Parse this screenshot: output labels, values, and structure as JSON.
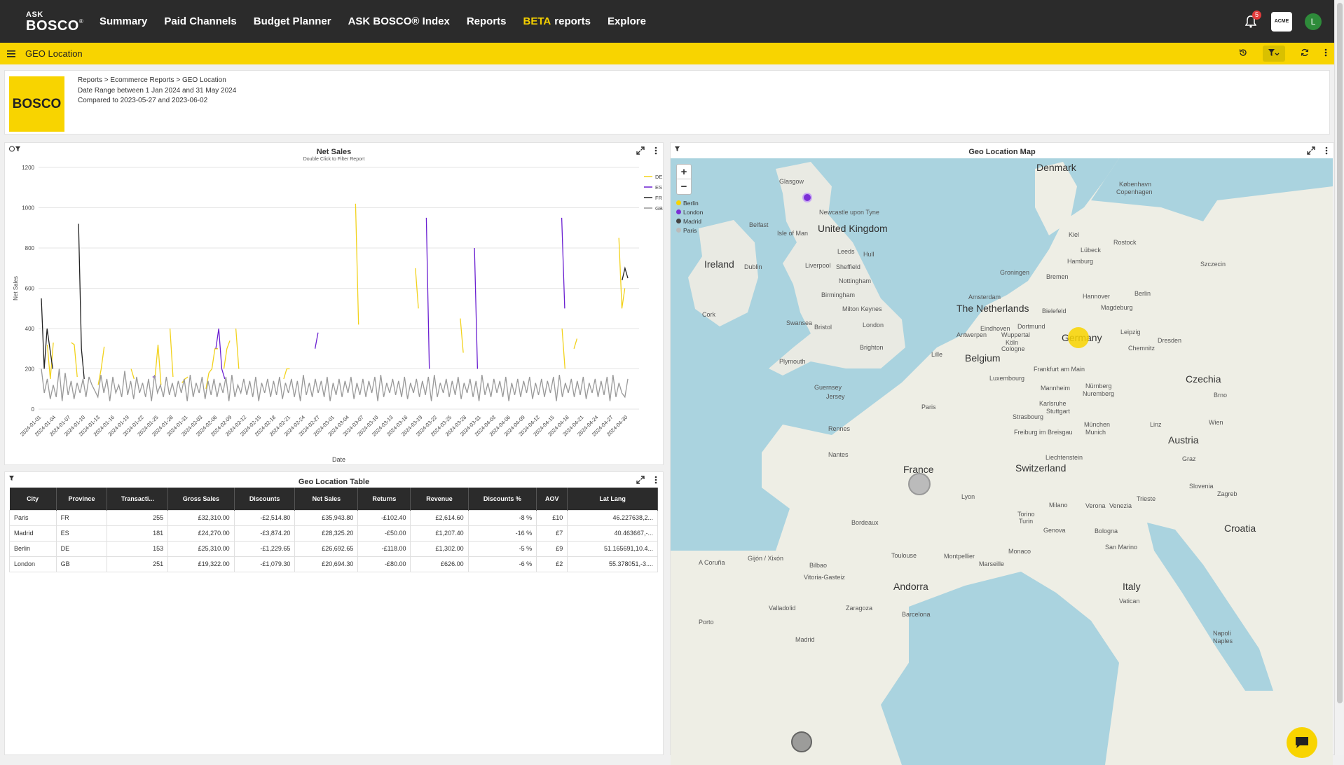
{
  "nav": {
    "logo_ask": "ASK",
    "logo_bosco": "BOSCO",
    "logo_mark": "®",
    "items": [
      {
        "label": "Summary"
      },
      {
        "label": "Paid Channels"
      },
      {
        "label": "Budget Planner"
      },
      {
        "label": "ASK BOSCO® Index"
      },
      {
        "label": "Reports"
      },
      {
        "beta": "BETA",
        "label": "reports"
      },
      {
        "label": "Explore"
      }
    ],
    "notifications": "5",
    "org_badge": "ACME",
    "avatar_initial": "L"
  },
  "toolbar": {
    "title": "GEO Location"
  },
  "header": {
    "logo_text": "BOSCO",
    "breadcrumb": "Reports > Ecommerce Reports > GEO Location",
    "date_range": "Date Range between 1 Jan 2024 and 31 May 2024",
    "compared": "Compared to 2023-05-27 and 2023-06-02"
  },
  "net_sales": {
    "title": "Net Sales",
    "subtitle": "Double Click to Filter Report"
  },
  "chart_data": {
    "type": "line",
    "title": "Net Sales",
    "xlabel": "Date",
    "ylabel": "Net Sales",
    "ylim": [
      0,
      1200
    ],
    "yticks": [
      0,
      200,
      400,
      600,
      800,
      1000,
      1200
    ],
    "xticks": [
      "2024-01-01",
      "2024-01-04",
      "2024-01-07",
      "2024-01-10",
      "2024-01-13",
      "2024-01-16",
      "2024-01-19",
      "2024-01-22",
      "2024-01-25",
      "2024-01-28",
      "2024-01-31",
      "2024-02-03",
      "2024-02-06",
      "2024-02-09",
      "2024-02-12",
      "2024-02-15",
      "2024-02-18",
      "2024-02-21",
      "2024-02-24",
      "2024-02-27",
      "2024-03-01",
      "2024-03-04",
      "2024-03-07",
      "2024-03-10",
      "2024-03-13",
      "2024-03-16",
      "2024-03-19",
      "2024-03-22",
      "2024-03-25",
      "2024-03-28",
      "2024-03-31",
      "2024-04-03",
      "2024-04-06",
      "2024-04-09",
      "2024-04-12",
      "2024-04-15",
      "2024-04-18",
      "2024-04-21",
      "2024-04-24",
      "2024-04-27",
      "2024-04-30"
    ],
    "series": [
      {
        "name": "DE",
        "color": "#f2d21b",
        "values": [
          null,
          null,
          320,
          150,
          330,
          null,
          null,
          null,
          150,
          null,
          330,
          320,
          160,
          null,
          null,
          null,
          160,
          null,
          null,
          120,
          200,
          310,
          null,
          null,
          null,
          null,
          null,
          null,
          null,
          null,
          200,
          150,
          null,
          null,
          null,
          null,
          null,
          null,
          160,
          320,
          120,
          null,
          null,
          400,
          160,
          null,
          null,
          130,
          150,
          160,
          null,
          300,
          null,
          null,
          null,
          100,
          180,
          200,
          300,
          300,
          null,
          200,
          300,
          340,
          null,
          400,
          200,
          null,
          null,
          null,
          null,
          120,
          null,
          null,
          200,
          null,
          null,
          380,
          null,
          null,
          null,
          150,
          200,
          200,
          null,
          null,
          null,
          null,
          null,
          null,
          340,
          null,
          null,
          null,
          null,
          500,
          null,
          null,
          null,
          null,
          null,
          null,
          null,
          null,
          null,
          1020,
          420,
          null,
          null,
          null,
          null,
          null,
          null,
          null,
          null,
          null,
          null,
          null,
          null,
          null,
          null,
          null,
          null,
          null,
          null,
          700,
          500,
          null,
          null,
          null,
          null,
          null,
          null,
          null,
          null,
          null,
          null,
          null,
          null,
          null,
          450,
          280,
          null,
          null,
          null,
          null,
          null,
          null,
          null,
          null,
          null,
          null,
          null,
          null,
          null,
          null,
          null,
          280,
          null,
          null,
          null,
          null,
          null,
          null,
          null,
          null,
          null,
          null,
          300,
          null,
          null,
          null,
          null,
          null,
          400,
          200,
          null,
          null,
          300,
          350,
          null,
          null,
          null,
          null,
          null,
          null,
          300,
          null,
          null,
          null,
          null,
          null,
          null,
          850,
          500,
          600,
          null
        ]
      },
      {
        "name": "ES",
        "color": "#6a1fd1",
        "values": [
          null,
          null,
          null,
          null,
          null,
          null,
          null,
          null,
          null,
          null,
          null,
          320,
          null,
          null,
          null,
          null,
          null,
          null,
          null,
          null,
          320,
          null,
          150,
          null,
          null,
          null,
          null,
          420,
          null,
          null,
          null,
          150,
          null,
          300,
          null,
          380,
          null,
          160,
          160,
          null,
          null,
          null,
          null,
          null,
          null,
          null,
          null,
          null,
          null,
          null,
          null,
          null,
          null,
          null,
          null,
          null,
          null,
          null,
          300,
          400,
          200,
          150,
          null,
          null,
          null,
          null,
          null,
          null,
          null,
          null,
          null,
          null,
          null,
          200,
          null,
          null,
          null,
          null,
          null,
          null,
          null,
          null,
          320,
          null,
          null,
          null,
          null,
          null,
          null,
          null,
          null,
          300,
          380,
          null,
          null,
          null,
          null,
          null,
          null,
          null,
          null,
          null,
          null,
          null,
          null,
          null,
          null,
          null,
          300,
          null,
          null,
          null,
          null,
          null,
          null,
          null,
          null,
          null,
          null,
          null,
          null,
          null,
          null,
          null,
          null,
          null,
          null,
          null,
          950,
          200,
          null,
          null,
          null,
          null,
          null,
          null,
          null,
          null,
          null,
          null,
          null,
          null,
          null,
          null,
          800,
          200,
          null,
          null,
          null,
          null,
          null,
          null,
          null,
          null,
          null,
          null,
          null,
          null,
          null,
          null,
          null,
          null,
          null,
          null,
          null,
          null,
          null,
          null,
          null,
          null,
          null,
          null,
          null,
          950,
          500,
          null,
          null,
          null,
          null,
          null,
          null,
          null,
          null,
          null,
          null,
          null,
          null,
          null,
          null,
          null,
          null,
          null,
          null,
          null,
          null,
          null
        ]
      },
      {
        "name": "FR",
        "color": "#222222",
        "values": [
          550,
          200,
          400,
          300,
          200,
          null,
          null,
          320,
          null,
          null,
          400,
          null,
          null,
          920,
          300,
          150,
          null,
          null,
          null,
          null,
          300,
          null,
          null,
          200,
          null,
          null,
          null,
          null,
          null,
          null,
          null,
          null,
          null,
          null,
          null,
          null,
          null,
          null,
          null,
          null,
          null,
          null,
          null,
          null,
          null,
          null,
          null,
          null,
          null,
          null,
          null,
          null,
          null,
          null,
          null,
          null,
          null,
          null,
          null,
          null,
          null,
          null,
          null,
          null,
          null,
          null,
          null,
          null,
          null,
          null,
          null,
          null,
          null,
          null,
          null,
          null,
          null,
          null,
          null,
          null,
          null,
          null,
          null,
          null,
          null,
          null,
          null,
          null,
          null,
          null,
          null,
          null,
          null,
          null,
          null,
          null,
          null,
          null,
          null,
          null,
          null,
          null,
          null,
          null,
          null,
          null,
          null,
          null,
          null,
          null,
          null,
          null,
          null,
          null,
          null,
          null,
          null,
          null,
          null,
          null,
          null,
          null,
          null,
          null,
          null,
          null,
          null,
          null,
          null,
          null,
          null,
          null,
          null,
          null,
          null,
          null,
          null,
          null,
          null,
          null,
          null,
          null,
          null,
          null,
          null,
          null,
          null,
          null,
          null,
          null,
          null,
          null,
          null,
          null,
          null,
          null,
          null,
          null,
          null,
          null,
          null,
          null,
          null,
          null,
          null,
          null,
          null,
          null,
          null,
          null,
          null,
          null,
          null,
          null,
          null,
          null,
          null,
          null,
          null,
          null,
          null,
          null,
          null,
          null,
          null,
          null,
          null,
          null,
          null,
          null,
          null,
          null,
          null,
          null,
          null,
          null,
          null,
          null,
          null,
          null,
          null,
          null,
          null,
          640,
          700,
          650
        ]
      },
      {
        "name": "GB",
        "color": "#999999",
        "values": [
          200,
          80,
          150,
          50,
          120,
          60,
          200,
          40,
          180,
          70,
          140,
          50,
          130,
          80,
          150,
          60,
          160,
          120,
          90,
          60,
          170,
          80,
          150,
          40,
          160,
          80,
          120,
          60,
          190,
          70,
          140,
          50,
          160,
          80,
          130,
          60,
          150,
          40,
          170,
          80,
          120,
          60,
          160,
          70,
          130,
          60,
          140,
          80,
          150,
          40,
          170,
          60,
          130,
          80,
          160,
          50,
          140,
          70,
          150,
          60,
          130,
          80,
          160,
          40,
          170,
          60,
          120,
          80,
          150,
          70,
          140,
          60,
          160,
          40,
          130,
          80,
          150,
          60,
          140,
          70,
          160,
          50,
          130,
          80,
          150,
          60,
          140,
          40,
          170,
          70,
          130,
          60,
          150,
          80,
          140,
          60,
          160,
          40,
          130,
          70,
          150,
          60,
          140,
          80,
          160,
          50,
          130,
          70,
          150,
          60,
          140,
          80,
          160,
          40,
          170,
          60,
          130,
          80,
          150,
          70,
          140,
          60,
          160,
          50,
          130,
          80,
          150,
          60,
          140,
          70,
          160,
          40,
          170,
          60,
          130,
          80,
          150,
          60,
          140,
          70,
          160,
          50,
          130,
          80,
          150,
          60,
          140,
          40,
          170,
          70,
          130,
          60,
          150,
          80,
          140,
          60,
          160,
          40,
          130,
          70,
          150,
          60,
          140,
          80,
          160,
          50,
          130,
          70,
          150,
          60,
          140,
          80,
          160,
          40,
          170,
          60,
          130,
          80,
          150,
          60,
          140,
          70,
          160,
          50,
          130,
          80,
          150,
          60,
          140,
          70,
          160,
          40,
          170,
          60,
          130,
          80,
          60,
          150
        ]
      }
    ]
  },
  "geo_table": {
    "title": "Geo Location Table",
    "columns": [
      "City",
      "Province",
      "Transacti...",
      "Gross Sales",
      "Discounts",
      "Net Sales",
      "Returns",
      "Revenue",
      "Discounts %",
      "AOV",
      "Lat Lang"
    ],
    "rows": [
      [
        "Paris",
        "FR",
        "255",
        "£32,310.00",
        "-£2,514.80",
        "£35,943.80",
        "-£102.40",
        "£2,614.60",
        "-8 %",
        "£10",
        "46.227638,2..."
      ],
      [
        "Madrid",
        "ES",
        "181",
        "£24,270.00",
        "-£3,874.20",
        "£28,325.20",
        "-£50.00",
        "£1,207.40",
        "-16 %",
        "£7",
        "40.463667,-..."
      ],
      [
        "Berlin",
        "DE",
        "153",
        "£25,310.00",
        "-£1,229.65",
        "£26,692.65",
        "-£118.00",
        "£1,302.00",
        "-5 %",
        "£9",
        "51.165691,10.4..."
      ],
      [
        "London",
        "GB",
        "251",
        "£19,322.00",
        "-£1,079.30",
        "£20,694.30",
        "-£80.00",
        "£626.00",
        "-6 %",
        "£2",
        "55.378051,-3...."
      ]
    ]
  },
  "geo_map": {
    "title": "Geo Location Map",
    "zoom_in": "+",
    "zoom_out": "−",
    "legend": [
      {
        "label": "Berlin",
        "color": "#f8d400"
      },
      {
        "label": "London",
        "color": "#7b2fd6"
      },
      {
        "label": "Madrid",
        "color": "#444444"
      },
      {
        "label": "Paris",
        "color": "#bbbbbb"
      }
    ],
    "labels": [
      "Denmark",
      "København",
      "Copenhagen",
      "Glasgow",
      "Newcastle upon Tyne",
      "Belfast",
      "Isle of Man",
      "United Kingdom",
      "Ireland",
      "Dublin",
      "Leeds",
      "Hull",
      "Liverpool",
      "Sheffield",
      "Nottingham",
      "Birmingham",
      "Milton Keynes",
      "Cork",
      "Swansea",
      "Bristol",
      "London",
      "Brighton",
      "Plymouth",
      "Kiel",
      "Rostock",
      "Lübeck",
      "Hamburg",
      "Szczecin",
      "Groningen",
      "Bremen",
      "Amsterdam",
      "The Netherlands",
      "Hannover",
      "Berlin",
      "Magdeburg",
      "Bielefeld",
      "Dortmund",
      "Eindhoven",
      "Wuppertal",
      "Köln",
      "Cologne",
      "Antwerpen",
      "Leipzig",
      "Dresden",
      "Chemnitz",
      "Germany",
      "Lille",
      "Belgium",
      "Luxembourg",
      "Frankfurt am Main",
      "Guernsey",
      "Jersey",
      "Paris",
      "Mannheim",
      "Nürnberg",
      "Nuremberg",
      "Czechia",
      "Karlsruhe",
      "Stuttgart",
      "Rennes",
      "Strasbourg",
      "Freiburg im Breisgau",
      "München",
      "Munich",
      "Linz",
      "Wien",
      "Brno",
      "Austria",
      "Nantes",
      "Liechtenstein",
      "France",
      "Switzerland",
      "Graz",
      "Slovenia",
      "Zagreb",
      "Lyon",
      "Milano",
      "Verona",
      "Venezia",
      "Trieste",
      "Torino",
      "Turin",
      "Genova",
      "Bologna",
      "Croatia",
      "Bordeaux",
      "Monaco",
      "San Marino",
      "Gijón / Xixón",
      "A Coruña",
      "Bilbao",
      "Toulouse",
      "Montpellier",
      "Marseille",
      "Vitoria-Gasteiz",
      "Andorra",
      "Italy",
      "Vatican",
      "Valladolid",
      "Zaragoza",
      "Barcelona",
      "Porto",
      "Madrid",
      "Napoli",
      "Naples"
    ]
  },
  "colors": {
    "nav_bg": "#2b2b2b",
    "accent": "#f8d400",
    "table_header": "#2b2b2b"
  }
}
